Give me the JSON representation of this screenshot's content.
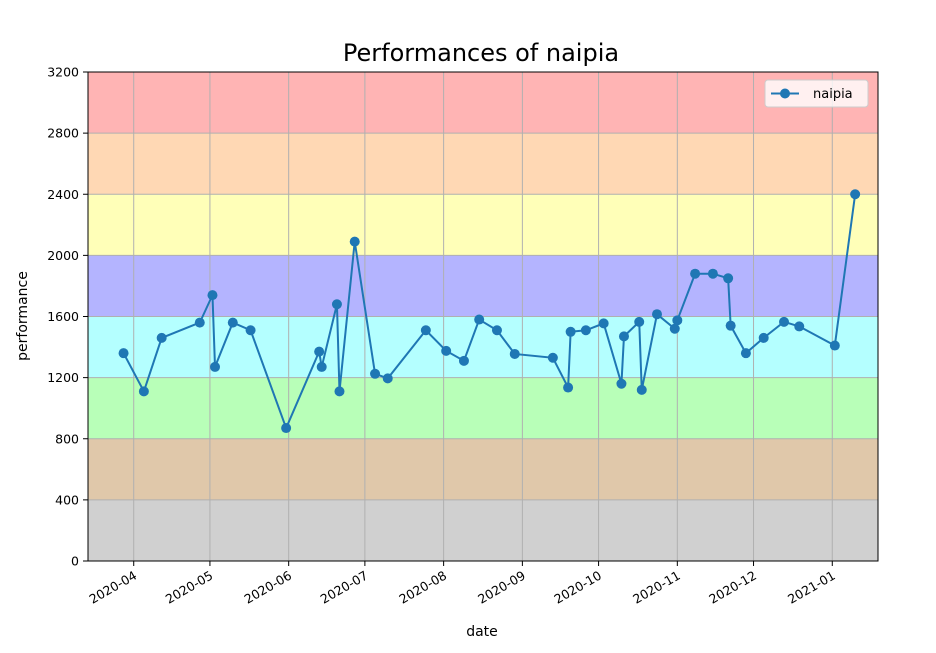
{
  "chart_data": {
    "type": "line",
    "title": "Performances of naipia",
    "xlabel": "date",
    "ylabel": "performance",
    "xlim": [
      "2020-03-14",
      "2021-01-19"
    ],
    "ylim": [
      0,
      3200
    ],
    "x_ticks": [
      "2020-04-01",
      "2020-05-01",
      "2020-06-01",
      "2020-07-01",
      "2020-08-01",
      "2020-09-01",
      "2020-10-01",
      "2020-11-01",
      "2020-12-01",
      "2021-01-01"
    ],
    "x_tick_labels": [
      "2020-04",
      "2020-05",
      "2020-06",
      "2020-07",
      "2020-08",
      "2020-09",
      "2020-10",
      "2020-11",
      "2020-12",
      "2021-01"
    ],
    "y_ticks": [
      0,
      400,
      800,
      1200,
      1600,
      2000,
      2400,
      2800,
      3200
    ],
    "grid": true,
    "legend": {
      "position": "upper-right",
      "entries": [
        "naipia"
      ]
    },
    "bands": [
      {
        "from": 0,
        "to": 400,
        "color": "#d0d0d0"
      },
      {
        "from": 400,
        "to": 800,
        "color": "#e0c8aa"
      },
      {
        "from": 800,
        "to": 1200,
        "color": "#b8ffb8"
      },
      {
        "from": 1200,
        "to": 1600,
        "color": "#b4ffff"
      },
      {
        "from": 1600,
        "to": 2000,
        "color": "#b4b4ff"
      },
      {
        "from": 2000,
        "to": 2400,
        "color": "#ffffb8"
      },
      {
        "from": 2400,
        "to": 2800,
        "color": "#ffd8b4"
      },
      {
        "from": 2800,
        "to": 3200,
        "color": "#ffb4b4"
      }
    ],
    "series": [
      {
        "name": "naipia",
        "color": "#1f77b4",
        "marker": "circle",
        "x": [
          "2020-03-28",
          "2020-04-05",
          "2020-04-12",
          "2020-04-27",
          "2020-05-02",
          "2020-05-03",
          "2020-05-10",
          "2020-05-17",
          "2020-05-31",
          "2020-06-13",
          "2020-06-14",
          "2020-06-20",
          "2020-06-21",
          "2020-06-27",
          "2020-07-05",
          "2020-07-10",
          "2020-07-25",
          "2020-08-02",
          "2020-08-09",
          "2020-08-15",
          "2020-08-22",
          "2020-08-29",
          "2020-09-13",
          "2020-09-19",
          "2020-09-20",
          "2020-09-26",
          "2020-10-03",
          "2020-10-10",
          "2020-10-11",
          "2020-10-17",
          "2020-10-18",
          "2020-10-24",
          "2020-10-31",
          "2020-11-01",
          "2020-11-08",
          "2020-11-15",
          "2020-11-21",
          "2020-11-22",
          "2020-11-28",
          "2020-12-05",
          "2020-12-13",
          "2020-12-19",
          "2021-01-02",
          "2021-01-10"
        ],
        "y": [
          1360,
          1110,
          1460,
          1560,
          1740,
          1270,
          1560,
          1510,
          870,
          1370,
          1270,
          1680,
          1110,
          2090,
          1225,
          1195,
          1510,
          1375,
          1310,
          1580,
          1510,
          1355,
          1330,
          1135,
          1500,
          1510,
          1555,
          1160,
          1470,
          1565,
          1120,
          1615,
          1520,
          1575,
          1880,
          1880,
          1850,
          1540,
          1360,
          1460,
          1565,
          1535,
          1410,
          2400
        ]
      }
    ]
  }
}
